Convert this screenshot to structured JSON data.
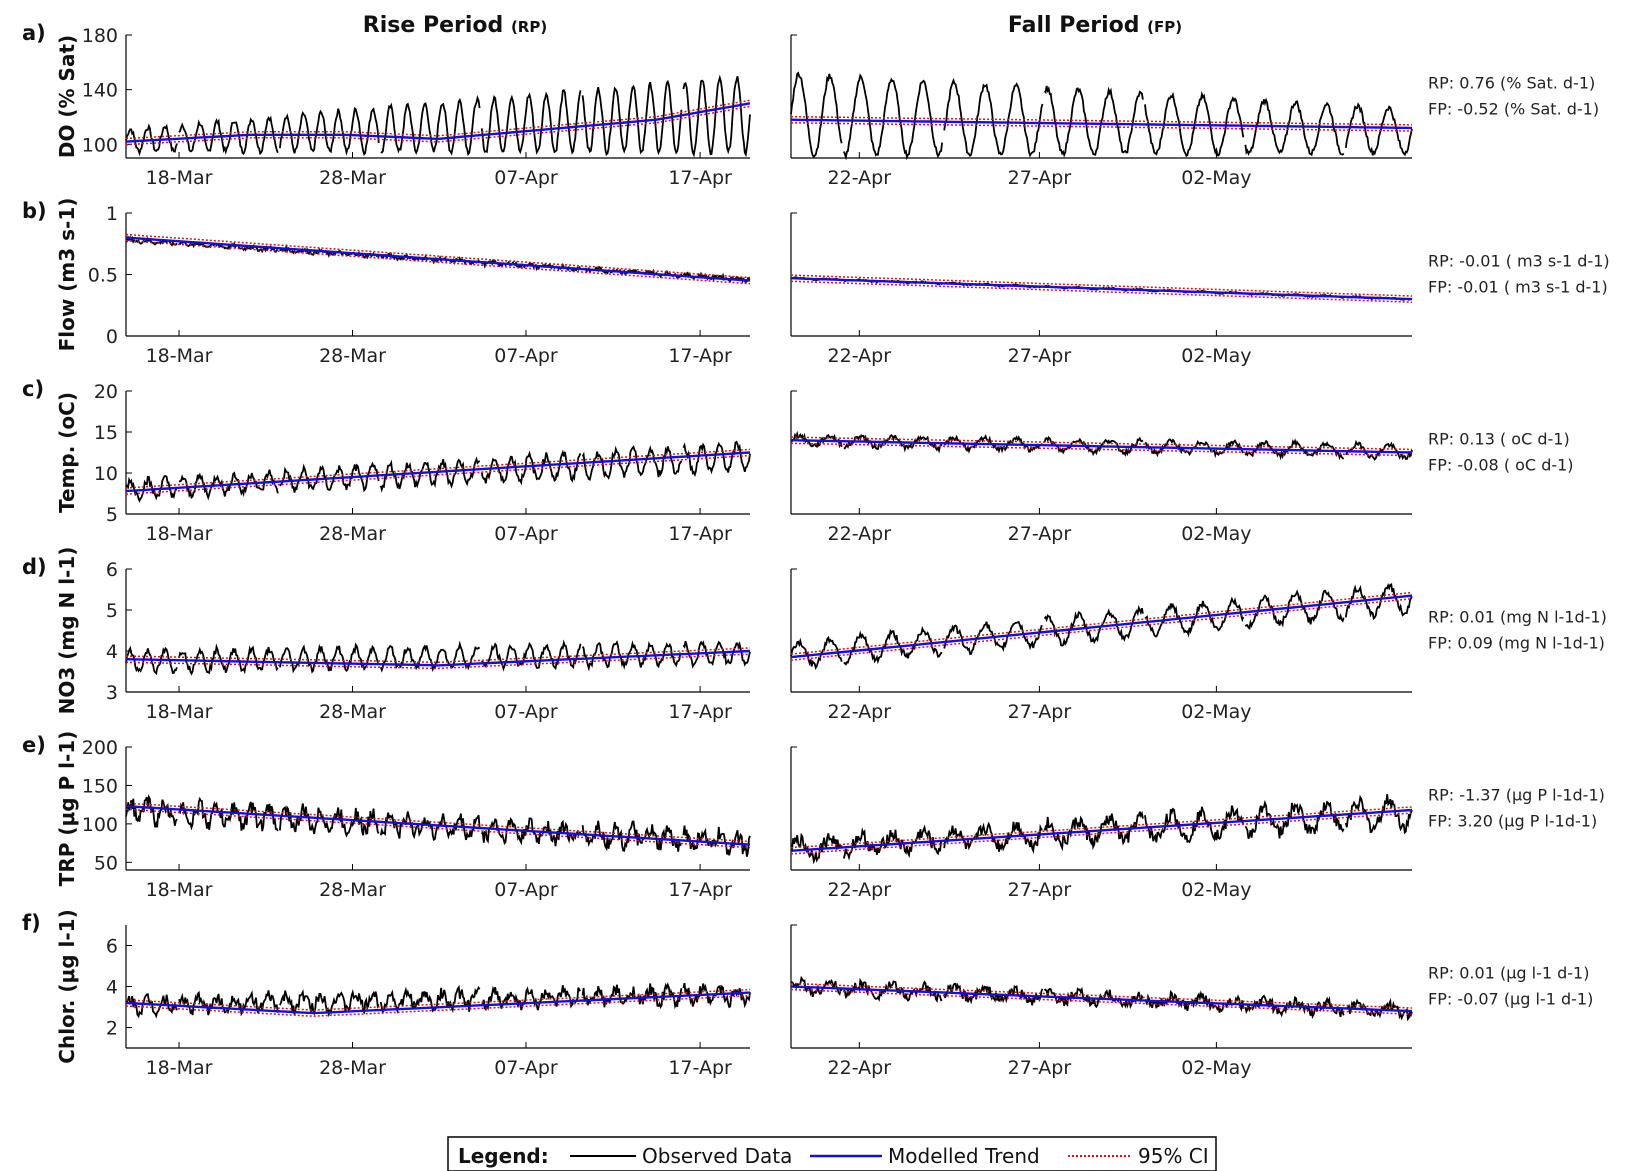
{
  "figure": {
    "rise_title": "Rise Period",
    "rise_abbr": "(RP)",
    "fall_title": "Fall Period",
    "fall_abbr": "(FP)"
  },
  "legend": {
    "title": "Legend:",
    "observed": "Observed Data",
    "trend": "Modelled Trend",
    "ci": "95% CI"
  },
  "colors": {
    "observed": "#000000",
    "trend": "#1010e0",
    "ci": "#e01010"
  },
  "chart_data": [
    {
      "type": "line",
      "panel": "a)",
      "ylabel": "DO (% Sat)",
      "ylim": [
        90,
        180
      ],
      "yticks": [
        100,
        140,
        180
      ],
      "rise": {
        "xlabels": [
          "18-Mar",
          "28-Mar",
          "07-Apr",
          "17-Apr"
        ],
        "trend": [
          [
            0,
            102
          ],
          [
            0.2,
            107
          ],
          [
            0.35,
            107
          ],
          [
            0.5,
            104
          ],
          [
            0.65,
            110
          ],
          [
            0.85,
            118
          ],
          [
            1,
            130
          ]
        ],
        "observed": {
          "base_start": 103,
          "base_end": 122,
          "amp_start": 8,
          "amp_end": 28,
          "cycles": 36,
          "noise": 2
        }
      },
      "fall": {
        "xlabels": [
          "22-Apr",
          "27-Apr",
          "02-May"
        ],
        "trend": [
          [
            0,
            118
          ],
          [
            0.5,
            115
          ],
          [
            1,
            112
          ]
        ],
        "observed": {
          "base_start": 122,
          "base_end": 110,
          "amp_start": 30,
          "amp_end": 16,
          "cycles": 20,
          "noise": 2
        }
      },
      "rates": {
        "rp_value": "0.76",
        "rp_unit": "(% Sat. d-1)",
        "fp_value": "-0.52",
        "fp_unit": "(% Sat. d-1)"
      }
    },
    {
      "type": "line",
      "panel": "b)",
      "ylabel": "Flow (m3 s-1)",
      "ylim": [
        0,
        1
      ],
      "yticks": [
        0,
        0.5,
        1
      ],
      "rise": {
        "xlabels": [
          "18-Mar",
          "28-Mar",
          "07-Apr",
          "17-Apr"
        ],
        "trend": [
          [
            0,
            0.8
          ],
          [
            1,
            0.45
          ]
        ],
        "observed": {
          "base_start": 0.78,
          "base_end": 0.46,
          "amp_start": 0.01,
          "amp_end": 0.01,
          "cycles": 36,
          "noise": 0.015
        }
      },
      "fall": {
        "xlabels": [
          "22-Apr",
          "27-Apr",
          "02-May"
        ],
        "trend": [
          [
            0,
            0.47
          ],
          [
            1,
            0.3
          ]
        ],
        "observed": {
          "base_start": 0.47,
          "base_end": 0.3,
          "amp_start": 0.005,
          "amp_end": 0.005,
          "cycles": 20,
          "noise": 0.006
        }
      },
      "rates": {
        "rp_value": "-0.01",
        "rp_unit": "( m3 s-1 d-1)",
        "fp_value": "-0.01",
        "fp_unit": "( m3 s-1 d-1)"
      }
    },
    {
      "type": "line",
      "panel": "c)",
      "ylabel": "Temp. (oC)",
      "ylim": [
        5,
        20
      ],
      "yticks": [
        5,
        10,
        15,
        20
      ],
      "rise": {
        "xlabels": [
          "18-Mar",
          "28-Mar",
          "07-Apr",
          "17-Apr"
        ],
        "trend": [
          [
            0,
            7.8
          ],
          [
            1,
            12.5
          ]
        ],
        "observed": {
          "base_start": 8,
          "base_end": 12,
          "amp_start": 1,
          "amp_end": 1.6,
          "cycles": 36,
          "noise": 0.5
        }
      },
      "fall": {
        "xlabels": [
          "22-Apr",
          "27-Apr",
          "02-May"
        ],
        "trend": [
          [
            0,
            14
          ],
          [
            1,
            12.5
          ]
        ],
        "observed": {
          "base_start": 14,
          "base_end": 12.6,
          "amp_start": 0.6,
          "amp_end": 0.8,
          "cycles": 20,
          "noise": 0.3
        }
      },
      "rates": {
        "rp_value": "0.13",
        "rp_unit": "( oC d-1)",
        "fp_value": "-0.08",
        "fp_unit": "( oC d-1)"
      }
    },
    {
      "type": "line",
      "panel": "d)",
      "ylabel": "NO3 (mg N l-1)",
      "ylim": [
        3,
        6
      ],
      "yticks": [
        3,
        4,
        5,
        6
      ],
      "rise": {
        "xlabels": [
          "18-Mar",
          "28-Mar",
          "07-Apr",
          "17-Apr"
        ],
        "trend": [
          [
            0,
            3.8
          ],
          [
            0.5,
            3.65
          ],
          [
            1,
            4.0
          ]
        ],
        "observed": {
          "base_start": 3.75,
          "base_end": 3.95,
          "amp_start": 0.25,
          "amp_end": 0.25,
          "cycles": 36,
          "noise": 0.08
        }
      },
      "fall": {
        "xlabels": [
          "22-Apr",
          "27-Apr",
          "02-May"
        ],
        "trend": [
          [
            0,
            3.85
          ],
          [
            1,
            5.35
          ]
        ],
        "observed": {
          "base_start": 3.9,
          "base_end": 5.3,
          "amp_start": 0.3,
          "amp_end": 0.35,
          "cycles": 20,
          "noise": 0.08
        }
      },
      "rates": {
        "rp_value": "0.01",
        "rp_unit": "(mg N l-1d-1)",
        "fp_value": "0.09",
        "fp_unit": "(mg N l-1d-1)"
      }
    },
    {
      "type": "line",
      "panel": "e)",
      "ylabel": "TRP (μg P l-1)",
      "ylim": [
        40,
        200
      ],
      "yticks": [
        50,
        100,
        150,
        200
      ],
      "rise": {
        "xlabels": [
          "18-Mar",
          "28-Mar",
          "07-Apr",
          "17-Apr"
        ],
        "trend": [
          [
            0,
            123
          ],
          [
            1,
            73
          ]
        ],
        "observed": {
          "base_start": 118,
          "base_end": 75,
          "amp_start": 12,
          "amp_end": 10,
          "cycles": 36,
          "noise": 10
        }
      },
      "fall": {
        "xlabels": [
          "22-Apr",
          "27-Apr",
          "02-May"
        ],
        "trend": [
          [
            0,
            65
          ],
          [
            1,
            118
          ]
        ],
        "observed": {
          "base_start": 68,
          "base_end": 115,
          "amp_start": 10,
          "amp_end": 18,
          "cycles": 20,
          "noise": 9
        }
      },
      "rates": {
        "rp_value": "-1.37",
        "rp_unit": "(μg P l-1d-1)",
        "fp_value": "3.20",
        "fp_unit": "(μg P l-1d-1)"
      }
    },
    {
      "type": "line",
      "panel": "f)",
      "ylabel": "Chlor. (μg l-1)",
      "ylim": [
        1,
        7
      ],
      "yticks": [
        2,
        4,
        6
      ],
      "rise": {
        "xlabels": [
          "18-Mar",
          "28-Mar",
          "07-Apr",
          "17-Apr"
        ],
        "trend": [
          [
            0,
            3.2
          ],
          [
            0.3,
            2.7
          ],
          [
            1,
            3.7
          ]
        ],
        "observed": {
          "base_start": 3.1,
          "base_end": 3.6,
          "amp_start": 0.3,
          "amp_end": 0.35,
          "cycles": 36,
          "noise": 0.3
        }
      },
      "fall": {
        "xlabels": [
          "22-Apr",
          "27-Apr",
          "02-May"
        ],
        "trend": [
          [
            0,
            4.0
          ],
          [
            1,
            2.8
          ]
        ],
        "observed": {
          "base_start": 4.0,
          "base_end": 2.8,
          "amp_start": 0.25,
          "amp_end": 0.2,
          "cycles": 20,
          "noise": 0.25
        }
      },
      "rates": {
        "rp_value": "0.01",
        "rp_unit": "(μg l-1 d-1)",
        "fp_value": "-0.07",
        "fp_unit": "(μg l-1 d-1)"
      }
    }
  ]
}
